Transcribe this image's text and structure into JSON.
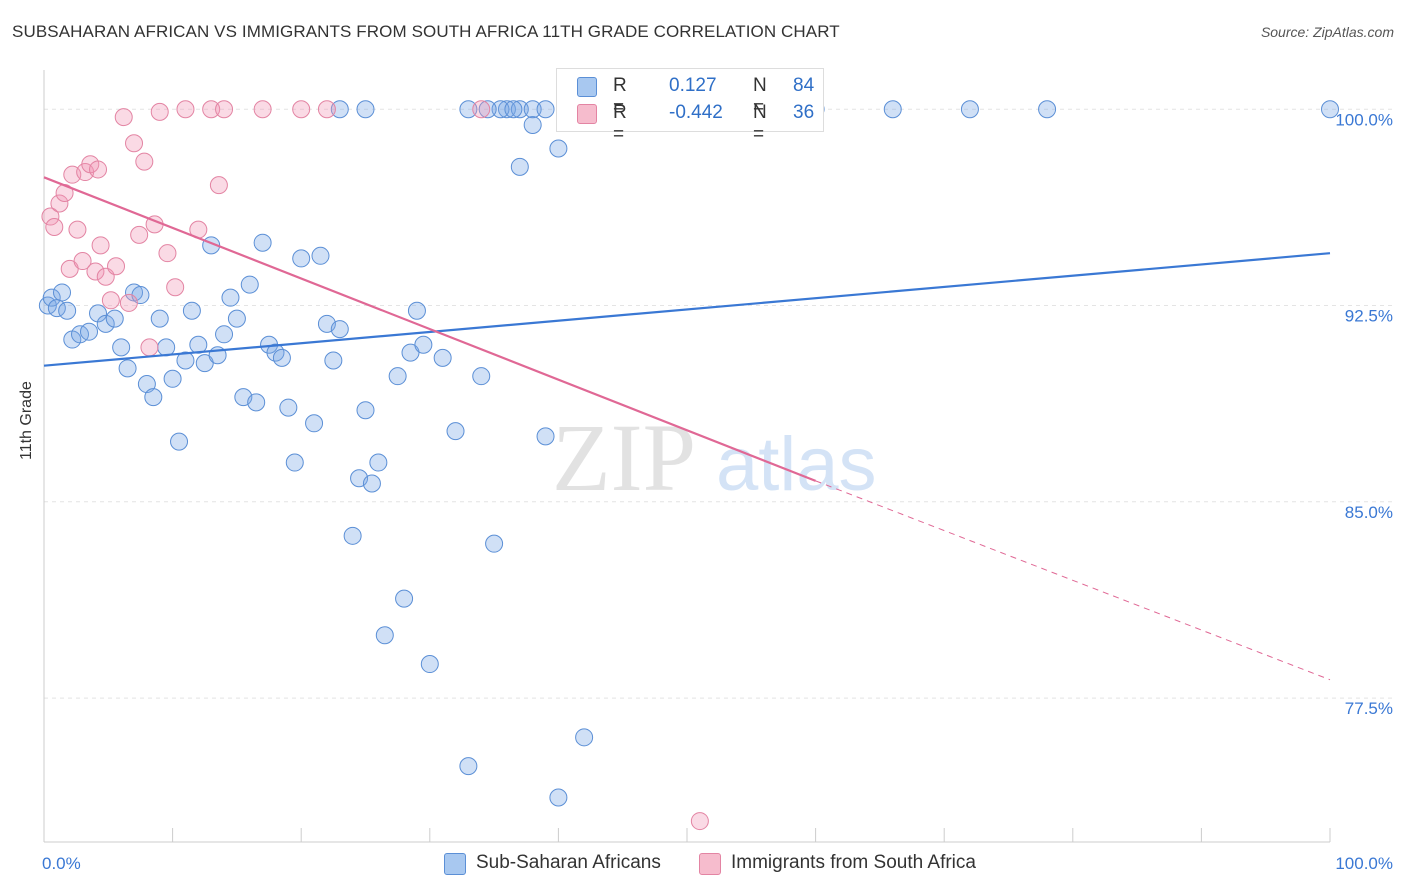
{
  "title": "SUBSAHARAN AFRICAN VS IMMIGRANTS FROM SOUTH AFRICA 11TH GRADE CORRELATION CHART",
  "source": "Source: ZipAtlas.com",
  "watermark": {
    "zip": "ZIP",
    "atlas": "atlas"
  },
  "legend": {
    "r_label": "R =",
    "n_label": "N =",
    "rows": [
      {
        "r": "0.127",
        "n": "84",
        "color": "#a8c8f0",
        "border": "#5b8fd6"
      },
      {
        "r": "-0.442",
        "n": "36",
        "color": "#f6bccd",
        "border": "#e384a3"
      }
    ]
  },
  "bottom_legend": [
    {
      "label": "Sub-Saharan Africans",
      "color": "#a8c8f0",
      "border": "#5b8fd6"
    },
    {
      "label": "Immigrants from South Africa",
      "color": "#f6bccd",
      "border": "#e384a3"
    }
  ],
  "chart_data": {
    "type": "scatter",
    "ylabel": "11th Grade",
    "xlim": [
      0,
      100
    ],
    "ylim": [
      72.0,
      101.5
    ],
    "x_tick_labels": [
      "0.0%",
      "100.0%"
    ],
    "y_ticks": [
      {
        "value": 100.0,
        "label": "100.0%"
      },
      {
        "value": 92.5,
        "label": "92.5%"
      },
      {
        "value": 85.0,
        "label": "85.0%"
      },
      {
        "value": 77.5,
        "label": "77.5%"
      }
    ],
    "grid": true,
    "colors": {
      "blue": "#3a78d4",
      "pink": "#e06895"
    },
    "series": [
      {
        "name": "Sub-Saharan Africans",
        "color": "#3a78d4",
        "fill": "rgba(120,165,230,0.35)",
        "stroke": "#5b8fd6",
        "trend": {
          "x0": 0,
          "y0": 90.2,
          "x1": 100,
          "y1": 94.5,
          "x_end": 100
        },
        "points": [
          [
            0.3,
            92.5
          ],
          [
            0.6,
            92.8
          ],
          [
            1.0,
            92.4
          ],
          [
            1.4,
            93.0
          ],
          [
            1.8,
            92.3
          ],
          [
            2.2,
            91.2
          ],
          [
            2.8,
            91.4
          ],
          [
            3.5,
            91.5
          ],
          [
            4.2,
            92.2
          ],
          [
            4.8,
            91.8
          ],
          [
            5.5,
            92.0
          ],
          [
            6.0,
            90.9
          ],
          [
            6.5,
            90.1
          ],
          [
            7.0,
            93.0
          ],
          [
            7.5,
            92.9
          ],
          [
            8.0,
            89.5
          ],
          [
            8.5,
            89.0
          ],
          [
            9.0,
            92.0
          ],
          [
            9.5,
            90.9
          ],
          [
            10.0,
            89.7
          ],
          [
            10.5,
            87.3
          ],
          [
            11.0,
            90.4
          ],
          [
            11.5,
            92.3
          ],
          [
            12.0,
            91.0
          ],
          [
            12.5,
            90.3
          ],
          [
            13.0,
            94.8
          ],
          [
            13.5,
            90.6
          ],
          [
            14.0,
            91.4
          ],
          [
            14.5,
            92.8
          ],
          [
            15.0,
            92.0
          ],
          [
            15.5,
            89.0
          ],
          [
            16.0,
            93.3
          ],
          [
            16.5,
            88.8
          ],
          [
            17.0,
            94.9
          ],
          [
            17.5,
            91.0
          ],
          [
            18.0,
            90.7
          ],
          [
            18.5,
            90.5
          ],
          [
            19.0,
            88.6
          ],
          [
            19.5,
            86.5
          ],
          [
            20.0,
            94.3
          ],
          [
            21.0,
            88.0
          ],
          [
            21.5,
            94.4
          ],
          [
            22.0,
            91.8
          ],
          [
            22.5,
            90.4
          ],
          [
            23.0,
            91.6
          ],
          [
            24.5,
            85.9
          ],
          [
            25.0,
            88.5
          ],
          [
            25.5,
            85.7
          ],
          [
            24.0,
            83.7
          ],
          [
            26.0,
            86.5
          ],
          [
            26.5,
            79.9
          ],
          [
            27.5,
            89.8
          ],
          [
            28.0,
            81.3
          ],
          [
            28.5,
            90.7
          ],
          [
            29.0,
            92.3
          ],
          [
            29.5,
            91.0
          ],
          [
            30.0,
            78.8
          ],
          [
            31.0,
            90.5
          ],
          [
            32.0,
            87.7
          ],
          [
            33.0,
            74.9
          ],
          [
            34.0,
            89.8
          ],
          [
            35.0,
            83.4
          ],
          [
            37.0,
            97.8
          ],
          [
            38.0,
            99.4
          ],
          [
            39.0,
            87.5
          ],
          [
            40.0,
            73.7
          ],
          [
            42.0,
            76.0
          ],
          [
            43.0,
            100.0
          ],
          [
            23.0,
            100.0
          ],
          [
            25.0,
            100.0
          ],
          [
            33.0,
            100.0
          ],
          [
            36.0,
            100.0
          ],
          [
            37.0,
            100.0
          ],
          [
            38.0,
            100.0
          ],
          [
            39.0,
            100.0
          ],
          [
            35.5,
            100.0
          ],
          [
            34.5,
            100.0
          ],
          [
            60.0,
            100.0
          ],
          [
            66.0,
            100.0
          ],
          [
            72.0,
            100.0
          ],
          [
            78.0,
            100.0
          ],
          [
            100.0,
            100.0
          ],
          [
            40.0,
            98.5
          ],
          [
            36.5,
            100.0
          ]
        ]
      },
      {
        "name": "Immigrants from South Africa",
        "color": "#e06895",
        "fill": "rgba(240,150,180,0.35)",
        "stroke": "#e384a3",
        "trend": {
          "x0": 0,
          "y0": 97.4,
          "x1": 60,
          "y1": 85.8,
          "x_end": 100,
          "y_end": 78.2
        },
        "points": [
          [
            0.5,
            95.9
          ],
          [
            0.8,
            95.5
          ],
          [
            1.2,
            96.4
          ],
          [
            1.6,
            96.8
          ],
          [
            2.0,
            93.9
          ],
          [
            2.2,
            97.5
          ],
          [
            2.6,
            95.4
          ],
          [
            3.0,
            94.2
          ],
          [
            3.2,
            97.6
          ],
          [
            3.6,
            97.9
          ],
          [
            4.0,
            93.8
          ],
          [
            4.2,
            97.7
          ],
          [
            4.4,
            94.8
          ],
          [
            4.8,
            93.6
          ],
          [
            5.2,
            92.7
          ],
          [
            5.6,
            94.0
          ],
          [
            6.2,
            99.7
          ],
          [
            6.6,
            92.6
          ],
          [
            7.0,
            98.7
          ],
          [
            7.4,
            95.2
          ],
          [
            7.8,
            98.0
          ],
          [
            8.2,
            90.9
          ],
          [
            8.6,
            95.6
          ],
          [
            9.0,
            99.9
          ],
          [
            9.6,
            94.5
          ],
          [
            10.2,
            93.2
          ],
          [
            11.0,
            100.0
          ],
          [
            12.0,
            95.4
          ],
          [
            13.0,
            100.0
          ],
          [
            13.6,
            97.1
          ],
          [
            14.0,
            100.0
          ],
          [
            17.0,
            100.0
          ],
          [
            20.0,
            100.0
          ],
          [
            22.0,
            100.0
          ],
          [
            34.0,
            100.0
          ],
          [
            51.0,
            72.8
          ]
        ]
      }
    ]
  }
}
